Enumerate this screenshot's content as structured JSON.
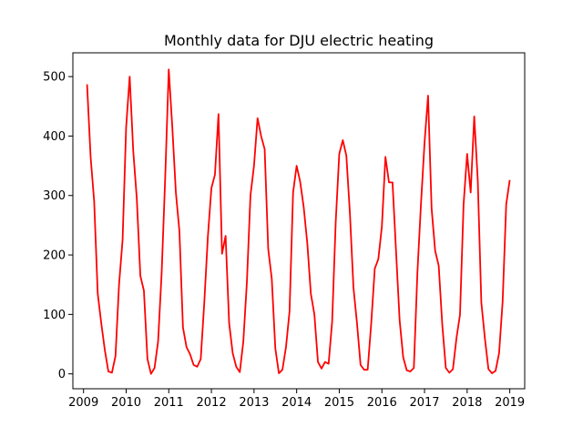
{
  "chart_data": {
    "type": "line",
    "title": "Monthly data for DJU electric heating",
    "xlabel": "",
    "ylabel": "",
    "xlim": [
      2008.75,
      2019.35
    ],
    "ylim": [
      -25,
      540
    ],
    "x_ticks": [
      2009,
      2010,
      2011,
      2012,
      2013,
      2014,
      2015,
      2016,
      2017,
      2018,
      2019
    ],
    "x_tick_labels": [
      "2009",
      "2010",
      "2011",
      "2012",
      "2013",
      "2014",
      "2015",
      "2016",
      "2017",
      "2018",
      "2019"
    ],
    "y_ticks": [
      0,
      100,
      200,
      300,
      400,
      500
    ],
    "y_tick_labels": [
      "0",
      "100",
      "200",
      "300",
      "400",
      "500"
    ],
    "grid": false,
    "series": [
      {
        "color": "#ff0000",
        "x_start": 2009.083,
        "x_step": 0.08333,
        "values": [
          487,
          365,
          290,
          135,
          85,
          40,
          4,
          2,
          30,
          150,
          225,
          415,
          500,
          375,
          295,
          165,
          140,
          25,
          0,
          10,
          55,
          170,
          330,
          512,
          415,
          305,
          240,
          78,
          45,
          33,
          15,
          12,
          25,
          120,
          230,
          312,
          335,
          437,
          202,
          232,
          85,
          35,
          12,
          3,
          55,
          155,
          300,
          350,
          430,
          400,
          378,
          210,
          160,
          43,
          1,
          7,
          45,
          105,
          305,
          350,
          323,
          280,
          220,
          135,
          100,
          20,
          9,
          20,
          17,
          88,
          255,
          370,
          393,
          367,
          270,
          145,
          85,
          15,
          7,
          7,
          85,
          177,
          193,
          248,
          365,
          322,
          322,
          205,
          90,
          28,
          6,
          4,
          10,
          170,
          285,
          388,
          468,
          278,
          207,
          182,
          83,
          10,
          2,
          8,
          60,
          100,
          285,
          370,
          305,
          433,
          325,
          120,
          60,
          8,
          1,
          5,
          35,
          122,
          285,
          326
        ]
      }
    ]
  }
}
